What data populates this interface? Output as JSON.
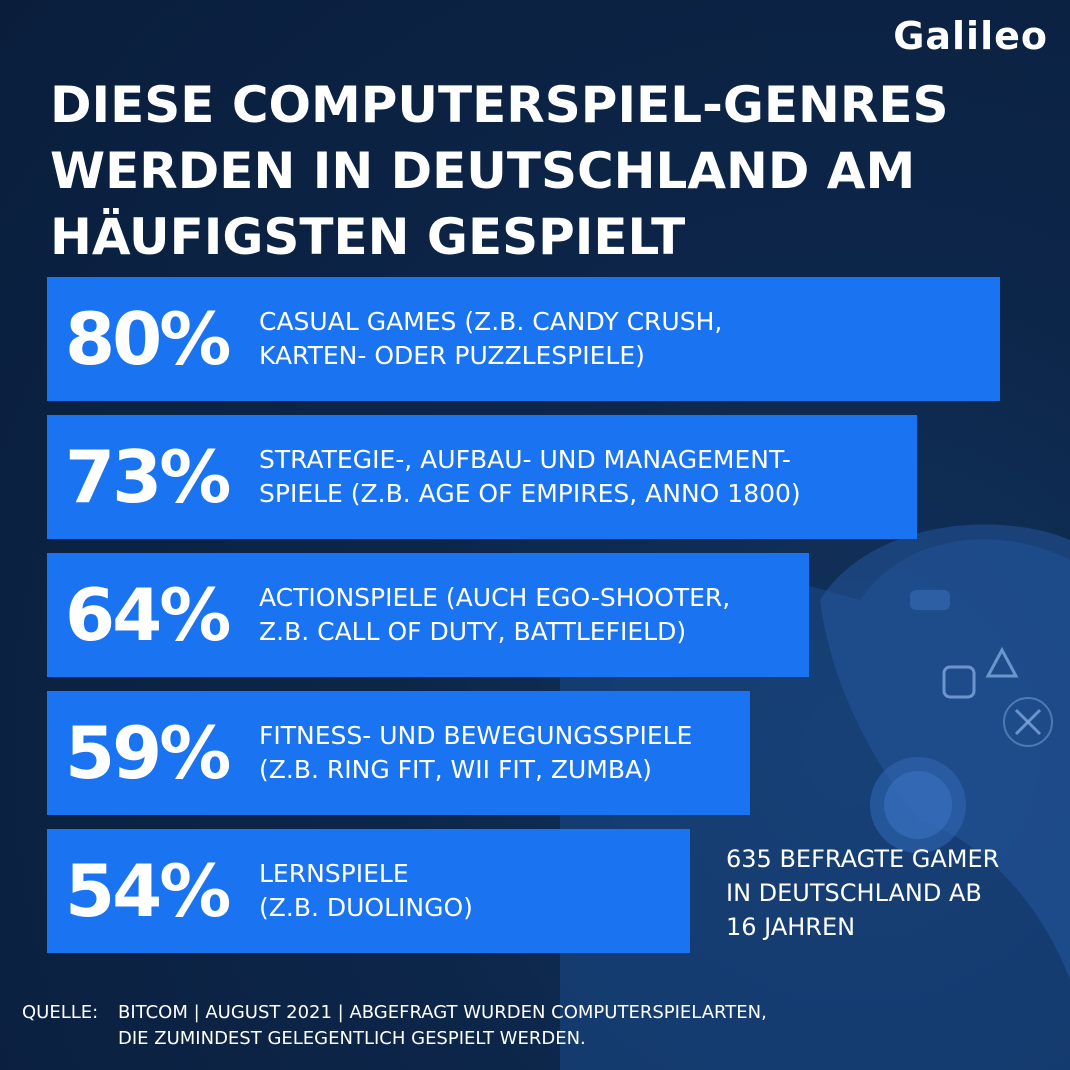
{
  "logo": "Galileo",
  "title_lines": [
    "DIESE COMPUTERSPIEL-GENRES",
    "WERDEN IN DEUTSCHLAND AM",
    "HÄUFIGSTEN GESPIELT"
  ],
  "chart_data": {
    "type": "bar",
    "orientation": "horizontal",
    "title": "DIESE COMPUTERSPIEL-GENRES WERDEN IN DEUTSCHLAND AM HÄUFIGSTEN GESPIELT",
    "bars": [
      {
        "value": 80,
        "value_label": "80%",
        "label_lines": [
          "CASUAL GAMES (Z.B. CANDY CRUSH,",
          "KARTEN- ODER PUZZLESPIELE)"
        ]
      },
      {
        "value": 73,
        "value_label": "73%",
        "label_lines": [
          "STRATEGIE-, AUFBAU- UND MANAGEMENT-",
          "SPIELE (Z.B. AGE OF EMPIRES, ANNO 1800)"
        ]
      },
      {
        "value": 64,
        "value_label": "64%",
        "label_lines": [
          "ACTIONSPIELE (AUCH EGO-SHOOTER,",
          "Z.B. CALL OF DUTY, BATTLEFIELD)"
        ]
      },
      {
        "value": 59,
        "value_label": "59%",
        "label_lines": [
          "FITNESS- UND BEWEGUNGSSPIELE",
          "(Z.B. RING FIT, WII FIT, ZUMBA)"
        ]
      },
      {
        "value": 54,
        "value_label": "54%",
        "label_lines": [
          "LERNSPIELE",
          "(Z.B. DUOLINGO)"
        ]
      }
    ],
    "bar_color": "#1a73f0"
  },
  "note_lines": [
    "635 BEFRAGTE GAMER",
    "IN DEUTSCHLAND AB",
    "16 JAHREN"
  ],
  "source": {
    "prefix": "QUELLE:",
    "lines": [
      "BITCOM | AUGUST 2021 | ABGEFRAGT WURDEN COMPUTERSPIELARTEN,",
      "DIE ZUMINDEST GELEGENTLICH GESPIELT WERDEN."
    ]
  },
  "colors": {
    "background": "#0b2447",
    "bar": "#1a73f0",
    "text": "#ffffff"
  },
  "decoration": "game-controller-icon"
}
